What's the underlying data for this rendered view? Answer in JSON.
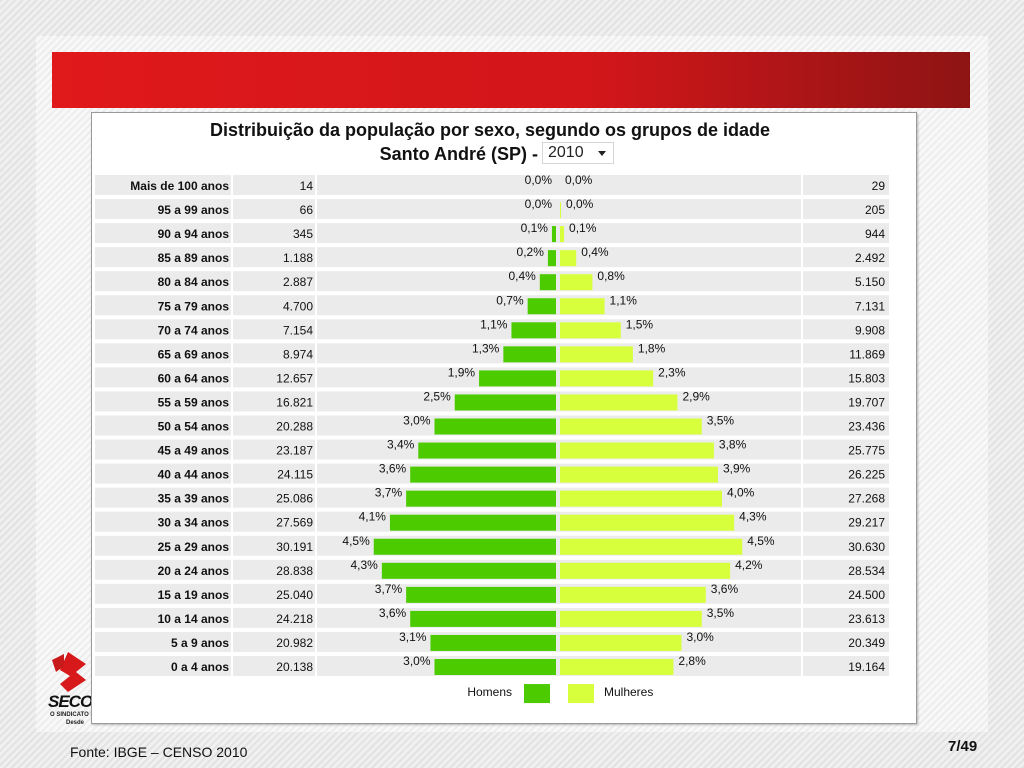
{
  "footer": {
    "source": "Fonte: IBGE – CENSO 2010",
    "page": "7/49"
  },
  "logo": {
    "text": "SECO",
    "subtitle": "O SINDICATO D",
    "since": "Desde"
  },
  "colors": {
    "men": "#4bcb00",
    "women": "#d7ff3c",
    "band": "#ebebeb",
    "banner": "#e0191b"
  },
  "chart_data": {
    "type": "bar",
    "title": "Distribuição da população por sexo, segundo os grupos de idade",
    "subtitle": "Santo André (SP) -",
    "year_select": "2010",
    "categories": [
      "Mais de 100 anos",
      "95 a 99 anos",
      "90 a 94 anos",
      "85 a 89 anos",
      "80 a 84 anos",
      "75 a 79 anos",
      "70 a 74 anos",
      "65 a 69 anos",
      "60 a 64 anos",
      "55 a 59 anos",
      "50 a 54 anos",
      "45 a 49 anos",
      "40 a 44 anos",
      "35 a 39 anos",
      "30 a 34 anos",
      "25 a 29 anos",
      "20 a 24 anos",
      "15 a 19 anos",
      "10 a 14 anos",
      "5 a 9 anos",
      "0 a 4 anos"
    ],
    "series": [
      {
        "name": "Homens",
        "counts": [
          "14",
          "66",
          "345",
          "1.188",
          "2.887",
          "4.700",
          "7.154",
          "8.974",
          "12.657",
          "16.821",
          "20.288",
          "23.187",
          "24.115",
          "25.086",
          "27.569",
          "30.191",
          "28.838",
          "25.040",
          "24.218",
          "20.982",
          "20.138"
        ],
        "percent_labels": [
          "0,0%",
          "0,0%",
          "0,1%",
          "0,2%",
          "0,4%",
          "0,7%",
          "1,1%",
          "1,3%",
          "1,9%",
          "2,5%",
          "3,0%",
          "3,4%",
          "3,6%",
          "3,7%",
          "4,1%",
          "4,5%",
          "4,3%",
          "3,7%",
          "3,6%",
          "3,1%",
          "3,0%"
        ],
        "values": [
          0.0,
          0.0,
          0.1,
          0.2,
          0.4,
          0.7,
          1.1,
          1.3,
          1.9,
          2.5,
          3.0,
          3.4,
          3.6,
          3.7,
          4.1,
          4.5,
          4.3,
          3.7,
          3.6,
          3.1,
          3.0
        ]
      },
      {
        "name": "Mulheres",
        "counts": [
          "29",
          "205",
          "944",
          "2.492",
          "5.150",
          "7.131",
          "9.908",
          "11.869",
          "15.803",
          "19.707",
          "23.436",
          "25.775",
          "26.225",
          "27.268",
          "29.217",
          "30.630",
          "28.534",
          "24.500",
          "23.613",
          "20.349",
          "19.164"
        ],
        "percent_labels": [
          "0,0%",
          "0,0%",
          "0,1%",
          "0,4%",
          "0,8%",
          "1,1%",
          "1,5%",
          "1,8%",
          "2,3%",
          "2,9%",
          "3,5%",
          "3,8%",
          "3,9%",
          "4,0%",
          "4,3%",
          "4,5%",
          "4,2%",
          "3,6%",
          "3,5%",
          "3,0%",
          "2,8%"
        ],
        "values": [
          0.0,
          0.0,
          0.1,
          0.4,
          0.8,
          1.1,
          1.5,
          1.8,
          2.3,
          2.9,
          3.5,
          3.8,
          3.9,
          4.0,
          4.3,
          4.5,
          4.2,
          3.6,
          3.5,
          3.0,
          2.8
        ]
      }
    ],
    "legend": [
      "Homens",
      "Mulheres"
    ],
    "legend_position": "bottom"
  }
}
